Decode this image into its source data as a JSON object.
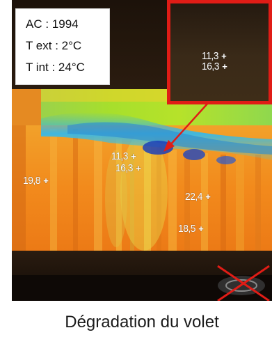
{
  "info": {
    "line1": "AC : 1994",
    "line2": "T ext : 2°C",
    "line3": "T int : 24°C"
  },
  "zoom": {
    "temp1": "11,3",
    "temp2": "16,3"
  },
  "measurements": {
    "m1": "19,8",
    "m2": "11,3",
    "m3": "16,3",
    "m4": "22,4",
    "m5": "18,5"
  },
  "caption": "Dégradation du volet",
  "colors": {
    "highlight_frame": "#e01c16",
    "cross_mark": "#e01c16"
  },
  "icons": [
    "crosshair-icon",
    "arrow-icon",
    "cross-out-icon"
  ]
}
